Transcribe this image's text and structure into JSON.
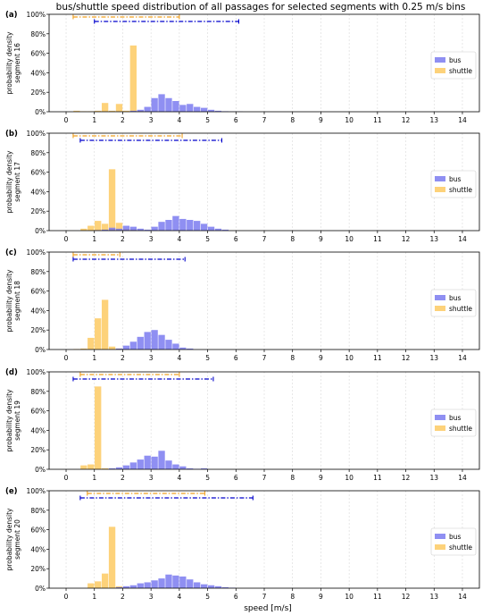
{
  "figure": {
    "title": "bus/shuttle speed distribution of all passages for selected segments with 0.25 m/s bins",
    "xlabel": "speed [m/s]"
  },
  "colors": {
    "bus": "#7b7bf0",
    "shuttle": "#fdd27a",
    "overlap": "#c28aa2",
    "bus_range": "#0000cc",
    "shuttle_range": "#f0a020",
    "grid": "#d9d9d9"
  },
  "chart_data": [
    {
      "type": "bar",
      "panel_label": "(a)",
      "ylabel": "probability density\nsegment 16",
      "xlim": [
        -0.6,
        14.6
      ],
      "ylim": [
        0,
        100
      ],
      "x_ticks": [
        "0",
        "1",
        "2",
        "3",
        "4",
        "5",
        "6",
        "7",
        "8",
        "9",
        "10",
        "11",
        "12",
        "13",
        "14"
      ],
      "y_ticks": [
        "0%",
        "20%",
        "40%",
        "60%",
        "80%",
        "100%"
      ],
      "legend": {
        "placement": "right",
        "entries": [
          "bus",
          "shuttle"
        ]
      },
      "bin_width": 0.25,
      "series": [
        {
          "name": "shuttle",
          "x": [
            0.25,
            0.5,
            0.75,
            1.0,
            1.25,
            1.5,
            1.75,
            2.0,
            2.25,
            2.5
          ],
          "values": [
            1,
            0.5,
            0.5,
            1,
            9,
            1,
            8,
            1,
            68,
            1
          ]
        },
        {
          "name": "bus",
          "x": [
            2.25,
            2.5,
            2.75,
            3.0,
            3.25,
            3.5,
            3.75,
            4.0,
            4.25,
            4.5,
            4.75,
            5.0,
            5.25,
            5.5,
            5.75,
            6.0
          ],
          "values": [
            1,
            2,
            5,
            14,
            18,
            14,
            11,
            7,
            8,
            5,
            4,
            2,
            1,
            0.5,
            0.3,
            0.2
          ]
        }
      ],
      "ranges": [
        {
          "name": "shuttle",
          "from": 0.25,
          "to": 4.0
        },
        {
          "name": "bus",
          "from": 1.0,
          "to": 6.1
        }
      ]
    },
    {
      "type": "bar",
      "panel_label": "(b)",
      "ylabel": "probability density\nsegment 17",
      "xlim": [
        -0.6,
        14.6
      ],
      "ylim": [
        0,
        100
      ],
      "x_ticks": [
        "0",
        "1",
        "2",
        "3",
        "4",
        "5",
        "6",
        "7",
        "8",
        "9",
        "10",
        "11",
        "12",
        "13",
        "14"
      ],
      "y_ticks": [
        "0%",
        "20%",
        "40%",
        "60%",
        "80%",
        "100%"
      ],
      "legend": {
        "placement": "right",
        "entries": [
          "bus",
          "shuttle"
        ]
      },
      "bin_width": 0.25,
      "series": [
        {
          "name": "shuttle",
          "x": [
            0.5,
            0.75,
            1.0,
            1.25,
            1.5,
            1.75,
            2.0,
            2.25
          ],
          "values": [
            2,
            5,
            10,
            7,
            63,
            8,
            2,
            1
          ]
        },
        {
          "name": "bus",
          "x": [
            1.0,
            1.25,
            1.5,
            1.75,
            2.0,
            2.25,
            2.5,
            2.75,
            3.0,
            3.25,
            3.5,
            3.75,
            4.0,
            4.25,
            4.5,
            4.75,
            5.0,
            5.25,
            5.5
          ],
          "values": [
            0.5,
            1,
            3,
            2,
            5,
            4,
            2,
            1,
            4,
            9,
            11,
            15,
            12,
            11,
            10,
            7,
            4,
            2,
            1
          ]
        }
      ],
      "ranges": [
        {
          "name": "shuttle",
          "from": 0.25,
          "to": 4.1
        },
        {
          "name": "bus",
          "from": 0.5,
          "to": 5.5
        }
      ]
    },
    {
      "type": "bar",
      "panel_label": "(c)",
      "ylabel": "probability density\nsegment 18",
      "xlim": [
        -0.6,
        14.6
      ],
      "ylim": [
        0,
        100
      ],
      "x_ticks": [
        "0",
        "1",
        "2",
        "3",
        "4",
        "5",
        "6",
        "7",
        "8",
        "9",
        "10",
        "11",
        "12",
        "13",
        "14"
      ],
      "y_ticks": [
        "0%",
        "20%",
        "40%",
        "60%",
        "80%",
        "100%"
      ],
      "legend": {
        "placement": "right",
        "entries": [
          "bus",
          "shuttle"
        ]
      },
      "bin_width": 0.25,
      "series": [
        {
          "name": "shuttle",
          "x": [
            0.25,
            0.5,
            0.75,
            1.0,
            1.25,
            1.5,
            1.75
          ],
          "values": [
            0.5,
            1,
            12,
            32,
            51,
            3,
            1
          ]
        },
        {
          "name": "bus",
          "x": [
            1.75,
            2.0,
            2.25,
            2.5,
            2.75,
            3.0,
            3.25,
            3.5,
            3.75,
            4.0,
            4.25
          ],
          "values": [
            1,
            4,
            8,
            13,
            18,
            20,
            15,
            10,
            6,
            2,
            1
          ]
        }
      ],
      "ranges": [
        {
          "name": "shuttle",
          "from": 0.25,
          "to": 1.9
        },
        {
          "name": "bus",
          "from": 0.25,
          "to": 4.2
        }
      ]
    },
    {
      "type": "bar",
      "panel_label": "(d)",
      "ylabel": "probability density\nsegment 19",
      "xlim": [
        -0.6,
        14.6
      ],
      "ylim": [
        0,
        100
      ],
      "x_ticks": [
        "0",
        "1",
        "2",
        "3",
        "4",
        "5",
        "6",
        "7",
        "8",
        "9",
        "10",
        "11",
        "12",
        "13",
        "14"
      ],
      "y_ticks": [
        "0%",
        "20%",
        "40%",
        "60%",
        "80%",
        "100%"
      ],
      "legend": {
        "placement": "right",
        "entries": [
          "bus",
          "shuttle"
        ]
      },
      "bin_width": 0.25,
      "series": [
        {
          "name": "shuttle",
          "x": [
            0.5,
            0.75,
            1.0,
            1.25
          ],
          "values": [
            4,
            5,
            85,
            1
          ]
        },
        {
          "name": "bus",
          "x": [
            1.5,
            1.75,
            2.0,
            2.25,
            2.5,
            2.75,
            3.0,
            3.25,
            3.5,
            3.75,
            4.0,
            4.25,
            4.5,
            4.75
          ],
          "values": [
            1,
            2,
            4,
            7,
            10,
            14,
            13,
            19,
            9,
            5,
            3,
            1,
            0.5,
            1
          ]
        }
      ],
      "ranges": [
        {
          "name": "shuttle",
          "from": 0.5,
          "to": 4.0
        },
        {
          "name": "bus",
          "from": 0.25,
          "to": 5.2
        }
      ]
    },
    {
      "type": "bar",
      "panel_label": "(e)",
      "ylabel": "probability density\nsegment 20",
      "xlim": [
        -0.6,
        14.6
      ],
      "ylim": [
        0,
        100
      ],
      "x_ticks": [
        "0",
        "1",
        "2",
        "3",
        "4",
        "5",
        "6",
        "7",
        "8",
        "9",
        "10",
        "11",
        "12",
        "13",
        "14"
      ],
      "y_ticks": [
        "0%",
        "20%",
        "40%",
        "60%",
        "80%",
        "100%"
      ],
      "legend": {
        "placement": "right",
        "entries": [
          "bus",
          "shuttle"
        ]
      },
      "bin_width": 0.25,
      "series": [
        {
          "name": "shuttle",
          "x": [
            0.75,
            1.0,
            1.25,
            1.5,
            1.75
          ],
          "values": [
            5,
            7,
            15,
            63,
            2
          ]
        },
        {
          "name": "bus",
          "x": [
            1.75,
            2.0,
            2.25,
            2.5,
            2.75,
            3.0,
            3.25,
            3.5,
            3.75,
            4.0,
            4.25,
            4.5,
            4.75,
            5.0,
            5.25,
            5.5,
            5.75
          ],
          "values": [
            1,
            2,
            3,
            5,
            6,
            8,
            10,
            14,
            13,
            12,
            9,
            6,
            4,
            3,
            2,
            1,
            0.5
          ]
        }
      ],
      "ranges": [
        {
          "name": "shuttle",
          "from": 0.75,
          "to": 4.9
        },
        {
          "name": "bus",
          "from": 0.5,
          "to": 6.6
        }
      ]
    }
  ]
}
